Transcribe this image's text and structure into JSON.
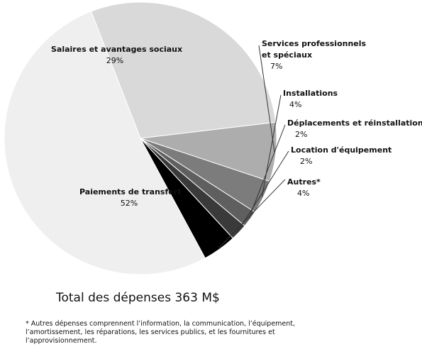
{
  "chart_data": {
    "type": "pie",
    "slices": [
      {
        "label": "Paiements de transfert",
        "value": 52,
        "display": "52%",
        "color": "#efefef"
      },
      {
        "label": "Salaires et avantages sociaux",
        "value": 29,
        "display": "29%",
        "color": "#d9d9d9"
      },
      {
        "label": "Services professionnels et spéciaux",
        "value": 7,
        "display": "7%",
        "color": "#adadad"
      },
      {
        "label": "Installations",
        "value": 4,
        "display": "4%",
        "color": "#7c7c7c"
      },
      {
        "label": "Déplacements et réinstallations",
        "value": 2,
        "display": "2%",
        "color": "#5f5f5f"
      },
      {
        "label": "Location d'équipement",
        "value": 2,
        "display": "2%",
        "color": "#3a3a3a"
      },
      {
        "label": "Autres*",
        "value": 4,
        "display": "4%",
        "color": "#000000"
      }
    ]
  },
  "total_label": "Total des dépenses 363 M$",
  "footnote": "* Autres dépenses comprennent l’information, la communication, l’équipement, l’amortissement, les réparations, les services publics, et les fournitures et l’approvisionnement."
}
